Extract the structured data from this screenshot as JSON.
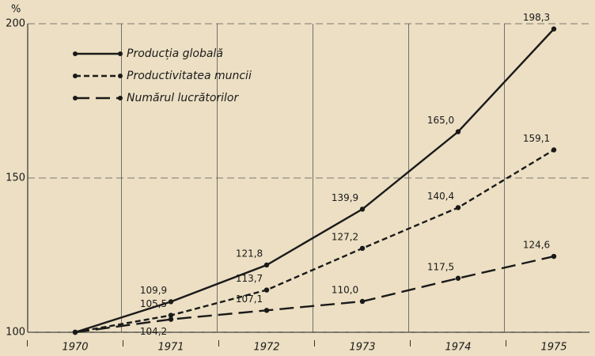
{
  "chart_data": {
    "type": "line",
    "y_label": "%",
    "categories": [
      "1970",
      "1971",
      "1972",
      "1973",
      "1974",
      "1975"
    ],
    "ylim": [
      100,
      200
    ],
    "yticks": [
      100,
      150,
      200
    ],
    "grid": true,
    "legend": "upper left",
    "series": [
      {
        "name": "Producția globală",
        "color": "#1a1a1a",
        "dash": "solid",
        "values": [
          100,
          109.9,
          121.8,
          139.9,
          165.0,
          198.3
        ],
        "value_labels": [
          null,
          "109,9",
          "121,8",
          "139,9",
          "165,0",
          "198,3"
        ]
      },
      {
        "name": "Productivitatea muncii",
        "color": "#1a1a1a",
        "dash": "short",
        "values": [
          100,
          105.5,
          113.7,
          127.2,
          140.4,
          159.1
        ],
        "value_labels": [
          null,
          "105,5",
          "113,7",
          "127,2",
          "140,4",
          "159,1"
        ]
      },
      {
        "name": "Numărul lucrătorilor",
        "color": "#1a1a1a",
        "dash": "long",
        "values": [
          100,
          104.2,
          107.1,
          110.0,
          117.5,
          124.6
        ],
        "value_labels": [
          null,
          "104,2",
          "107,1",
          "110,0",
          "117,5",
          "124,6"
        ]
      }
    ]
  }
}
